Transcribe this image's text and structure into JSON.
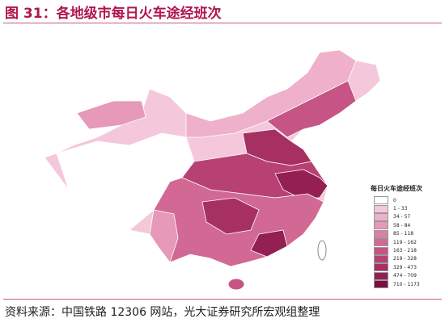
{
  "title": "图 31：各地级市每日火车途经班次",
  "legend": {
    "title": "每日火车途经班次",
    "items": [
      {
        "label": "0",
        "color": "#ffffff"
      },
      {
        "label": "1 - 33",
        "color": "#f4c8da"
      },
      {
        "label": "34 - 57",
        "color": "#eeb0ca"
      },
      {
        "label": "58 - 84",
        "color": "#e699b8"
      },
      {
        "label": "85 - 118",
        "color": "#dc80a6"
      },
      {
        "label": "119 - 162",
        "color": "#d26894"
      },
      {
        "label": "163 - 218",
        "color": "#c65484"
      },
      {
        "label": "219 - 328",
        "color": "#b84174"
      },
      {
        "label": "329 - 473",
        "color": "#a73063"
      },
      {
        "label": "474 - 709",
        "color": "#931f53"
      },
      {
        "label": "710 - 1173",
        "color": "#7a0f40"
      }
    ]
  },
  "source": "资料来源：中国铁路 12306 网站，光大证券研究所宏观组整理"
}
